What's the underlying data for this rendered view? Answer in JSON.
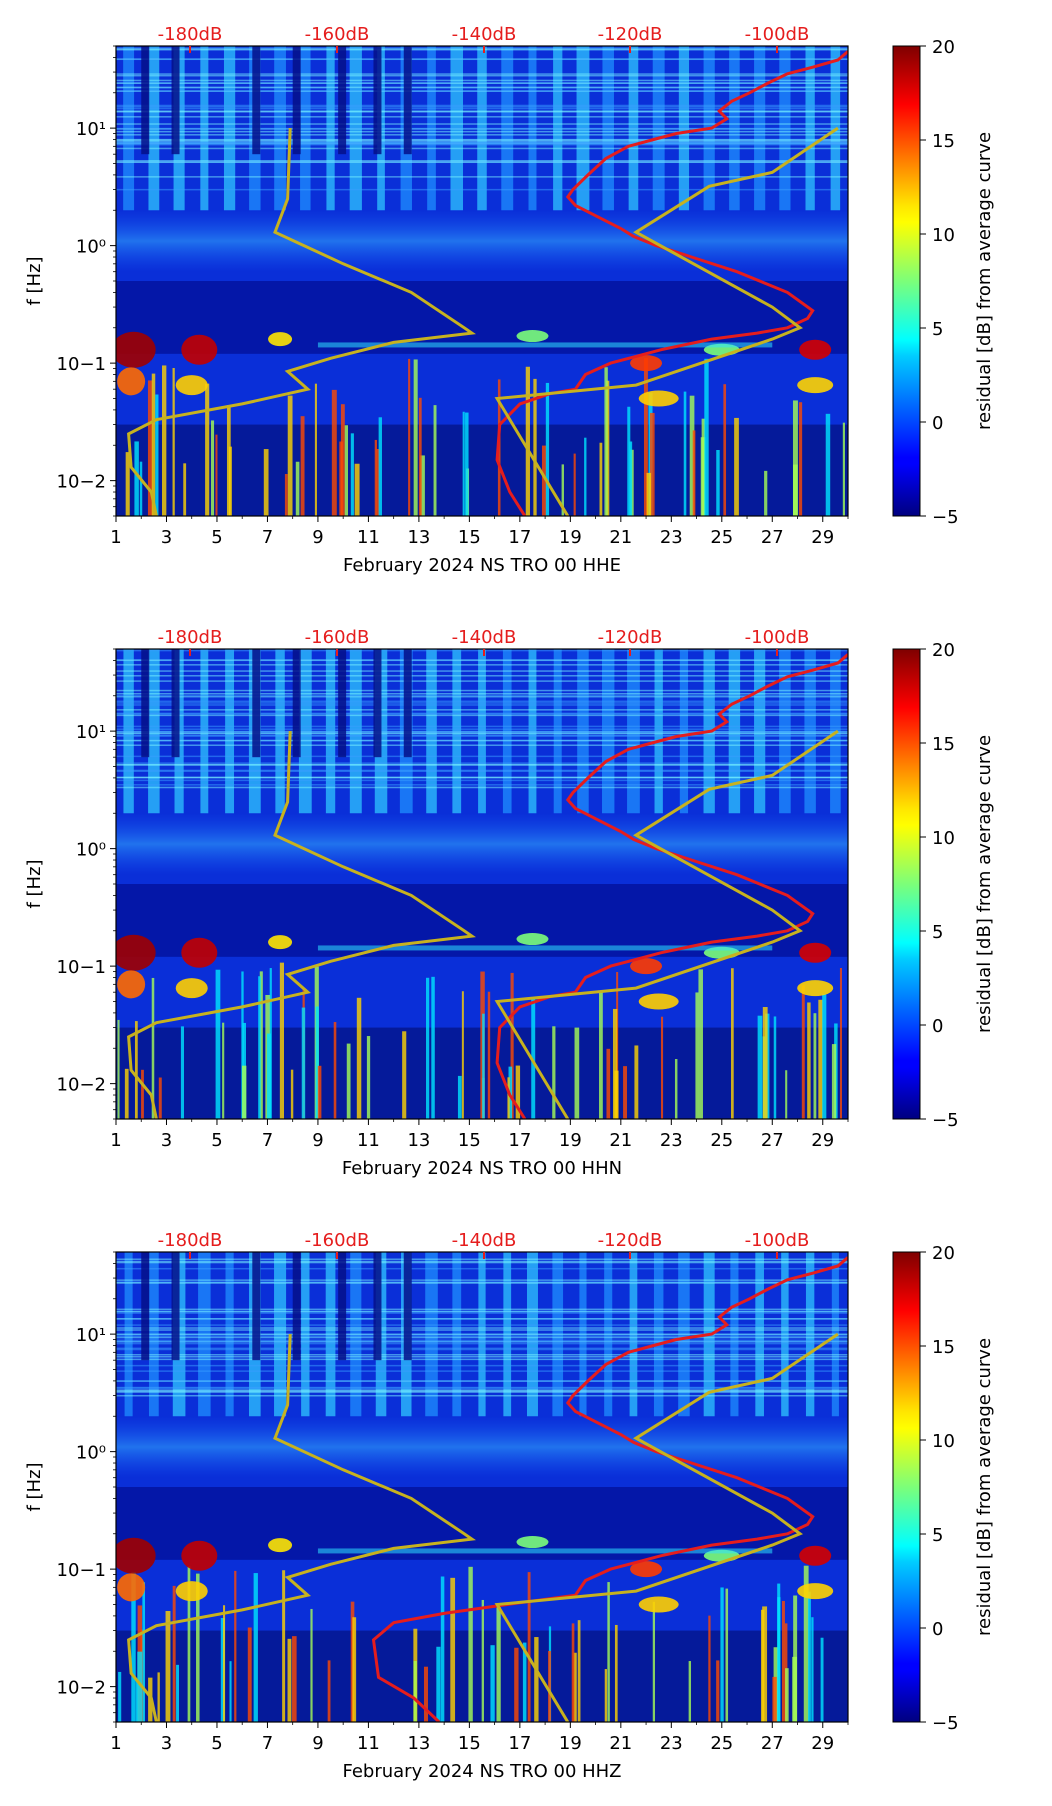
{
  "colors": {
    "psd_curve": "#e51d1d",
    "ref_curve": "#c7b21f",
    "db_labels": "#e51d1d"
  },
  "chart_data": [
    {
      "type": "heatmap",
      "title": "",
      "xlabel": "February 2024 NS TRO 00 HHE",
      "ylabel": "f [Hz]",
      "colorbar_label": "residual [dB] from average curve",
      "colormap": "jet",
      "x_ticks": [
        "1",
        "3",
        "5",
        "7",
        "9",
        "11",
        "13",
        "15",
        "17",
        "19",
        "21",
        "23",
        "25",
        "27",
        "29"
      ],
      "x_range": [
        1,
        30
      ],
      "y_scale": "log",
      "y_range": [
        0.005,
        50
      ],
      "y_ticks": [
        "10−2",
        "10−1",
        "10⁰",
        "10¹"
      ],
      "colorbar_range": [
        -5,
        20
      ],
      "colorbar_ticks": [
        "−5",
        "0",
        "5",
        "10",
        "15",
        "20"
      ],
      "db_axis_ticks": [
        "-180dB",
        "-160dB",
        "-140dB",
        "-120dB",
        "-100dB"
      ],
      "series": [
        {
          "name": "psd_curve",
          "color": "red",
          "x": [
            17.2,
            16.6,
            16.1,
            16.2,
            17.0,
            18.2,
            19.2,
            19.6,
            20.6,
            22.6,
            24.6,
            26.4,
            27.6,
            28.4,
            28.6,
            27.6,
            25.6,
            23.8,
            22.4,
            21.5,
            21.0,
            19.2,
            18.9,
            19.1,
            19.7,
            20.4,
            21.3,
            22.3,
            23.2,
            24.6,
            25.2,
            24.9,
            25.4,
            26.1,
            26.8,
            27.6,
            28.6,
            29.6,
            30.0
          ],
          "y": [
            0.005,
            0.008,
            0.015,
            0.03,
            0.045,
            0.055,
            0.06,
            0.08,
            0.1,
            0.13,
            0.16,
            0.18,
            0.2,
            0.24,
            0.28,
            0.4,
            0.6,
            0.8,
            1.0,
            1.2,
            1.4,
            2.2,
            2.6,
            3.0,
            4.0,
            5.5,
            7.0,
            8.0,
            9.0,
            10.0,
            12.0,
            14.0,
            17.0,
            20.0,
            24.0,
            29.0,
            33.0,
            38.0,
            45.0
          ]
        },
        {
          "name": "reference_curve",
          "color": "yellow",
          "x": [
            2.6,
            2.4,
            1.6,
            1.5,
            2.6,
            6.0,
            8.6,
            7.8,
            9.5,
            12.0,
            15.1,
            14.8,
            12.7,
            10.0,
            7.3,
            7.8,
            7.9,
            18.9,
            16.1,
            21.6,
            27.0,
            28.1,
            27.0,
            21.6,
            24.5,
            27.0,
            29.6
          ],
          "y": [
            0.005,
            0.008,
            0.013,
            0.025,
            0.033,
            0.045,
            0.06,
            0.085,
            0.11,
            0.15,
            0.18,
            0.2,
            0.4,
            0.7,
            1.3,
            2.5,
            10.0,
            0.005,
            0.05,
            0.065,
            0.16,
            0.2,
            0.3,
            1.3,
            3.2,
            4.2,
            10.0
          ]
        }
      ]
    },
    {
      "type": "heatmap",
      "title": "",
      "xlabel": "February 2024 NS TRO 00 HHN",
      "ylabel": "f [Hz]",
      "colorbar_label": "residual [dB] from average curve",
      "colormap": "jet",
      "x_ticks": [
        "1",
        "3",
        "5",
        "7",
        "9",
        "11",
        "13",
        "15",
        "17",
        "19",
        "21",
        "23",
        "25",
        "27",
        "29"
      ],
      "x_range": [
        1,
        30
      ],
      "y_scale": "log",
      "y_range": [
        0.005,
        50
      ],
      "y_ticks": [
        "10−2",
        "10−1",
        "10⁰",
        "10¹"
      ],
      "colorbar_range": [
        -5,
        20
      ],
      "colorbar_ticks": [
        "−5",
        "0",
        "5",
        "10",
        "15",
        "20"
      ],
      "db_axis_ticks": [
        "-180dB",
        "-160dB",
        "-140dB",
        "-120dB",
        "-100dB"
      ],
      "series": [
        {
          "name": "psd_curve",
          "color": "red",
          "x": [
            17.2,
            16.6,
            16.1,
            16.2,
            17.0,
            18.2,
            19.2,
            19.6,
            20.6,
            22.6,
            24.6,
            26.4,
            27.6,
            28.4,
            28.6,
            27.6,
            25.6,
            23.8,
            22.4,
            21.5,
            21.0,
            19.2,
            18.9,
            19.1,
            19.7,
            20.4,
            21.3,
            22.3,
            23.2,
            24.6,
            25.2,
            24.9,
            25.4,
            26.1,
            26.8,
            27.6,
            28.6,
            29.6,
            30.0
          ],
          "y": [
            0.005,
            0.008,
            0.015,
            0.03,
            0.045,
            0.055,
            0.06,
            0.08,
            0.1,
            0.13,
            0.16,
            0.18,
            0.2,
            0.24,
            0.28,
            0.4,
            0.6,
            0.8,
            1.0,
            1.2,
            1.4,
            2.2,
            2.6,
            3.0,
            4.0,
            5.5,
            7.0,
            8.0,
            9.0,
            10.0,
            12.0,
            14.0,
            17.0,
            20.0,
            24.0,
            29.0,
            33.0,
            38.0,
            45.0
          ]
        },
        {
          "name": "reference_curve",
          "color": "yellow",
          "x": [
            2.6,
            2.4,
            1.6,
            1.5,
            2.6,
            6.0,
            8.6,
            7.8,
            9.5,
            12.0,
            15.1,
            14.8,
            12.7,
            10.0,
            7.3,
            7.8,
            7.9,
            18.9,
            16.1,
            21.6,
            27.0,
            28.1,
            27.0,
            21.6,
            24.5,
            27.0,
            29.6
          ],
          "y": [
            0.005,
            0.008,
            0.013,
            0.025,
            0.033,
            0.045,
            0.06,
            0.085,
            0.11,
            0.15,
            0.18,
            0.2,
            0.4,
            0.7,
            1.3,
            2.5,
            10.0,
            0.005,
            0.05,
            0.065,
            0.16,
            0.2,
            0.3,
            1.3,
            3.2,
            4.2,
            10.0
          ]
        }
      ]
    },
    {
      "type": "heatmap",
      "title": "",
      "xlabel": "February 2024 NS TRO 00 HHZ",
      "ylabel": "f [Hz]",
      "colorbar_label": "residual [dB] from average curve",
      "colormap": "jet",
      "x_ticks": [
        "1",
        "3",
        "5",
        "7",
        "9",
        "11",
        "13",
        "15",
        "17",
        "19",
        "21",
        "23",
        "25",
        "27",
        "29"
      ],
      "x_range": [
        1,
        30
      ],
      "y_scale": "log",
      "y_range": [
        0.005,
        50
      ],
      "y_ticks": [
        "10−2",
        "10−1",
        "10⁰",
        "10¹"
      ],
      "colorbar_range": [
        -5,
        20
      ],
      "colorbar_ticks": [
        "−5",
        "0",
        "5",
        "10",
        "15",
        "20"
      ],
      "db_axis_ticks": [
        "-180dB",
        "-160dB",
        "-140dB",
        "-120dB",
        "-100dB"
      ],
      "series": [
        {
          "name": "psd_curve",
          "color": "red",
          "x": [
            13.8,
            12.8,
            11.4,
            11.2,
            12.0,
            14.0,
            16.5,
            19.2,
            19.6,
            20.6,
            22.6,
            24.6,
            26.4,
            27.6,
            28.4,
            28.6,
            27.6,
            25.6,
            23.8,
            22.4,
            21.5,
            21.0,
            19.2,
            18.9,
            19.1,
            19.7,
            20.4,
            21.3,
            22.3,
            23.2,
            24.6,
            25.2,
            24.9,
            25.4,
            26.1,
            26.8,
            27.6,
            28.6,
            29.6,
            30.0
          ],
          "y": [
            0.005,
            0.008,
            0.012,
            0.025,
            0.035,
            0.042,
            0.05,
            0.06,
            0.08,
            0.1,
            0.13,
            0.16,
            0.18,
            0.2,
            0.24,
            0.28,
            0.4,
            0.6,
            0.8,
            1.0,
            1.2,
            1.4,
            2.2,
            2.6,
            3.0,
            4.0,
            5.5,
            7.0,
            8.0,
            9.0,
            10.0,
            12.0,
            14.0,
            17.0,
            20.0,
            24.0,
            29.0,
            33.0,
            38.0,
            45.0
          ]
        },
        {
          "name": "reference_curve",
          "color": "yellow",
          "x": [
            2.6,
            2.4,
            1.6,
            1.5,
            2.6,
            6.0,
            8.6,
            7.8,
            9.5,
            12.0,
            15.1,
            14.8,
            12.7,
            10.0,
            7.3,
            7.8,
            7.9,
            18.9,
            16.1,
            21.6,
            27.0,
            28.1,
            27.0,
            21.6,
            24.5,
            27.0,
            29.6
          ],
          "y": [
            0.005,
            0.008,
            0.013,
            0.025,
            0.033,
            0.045,
            0.06,
            0.085,
            0.11,
            0.15,
            0.18,
            0.2,
            0.4,
            0.7,
            1.3,
            2.5,
            10.0,
            0.005,
            0.05,
            0.065,
            0.16,
            0.2,
            0.3,
            1.3,
            3.2,
            4.2,
            10.0
          ]
        }
      ]
    }
  ]
}
